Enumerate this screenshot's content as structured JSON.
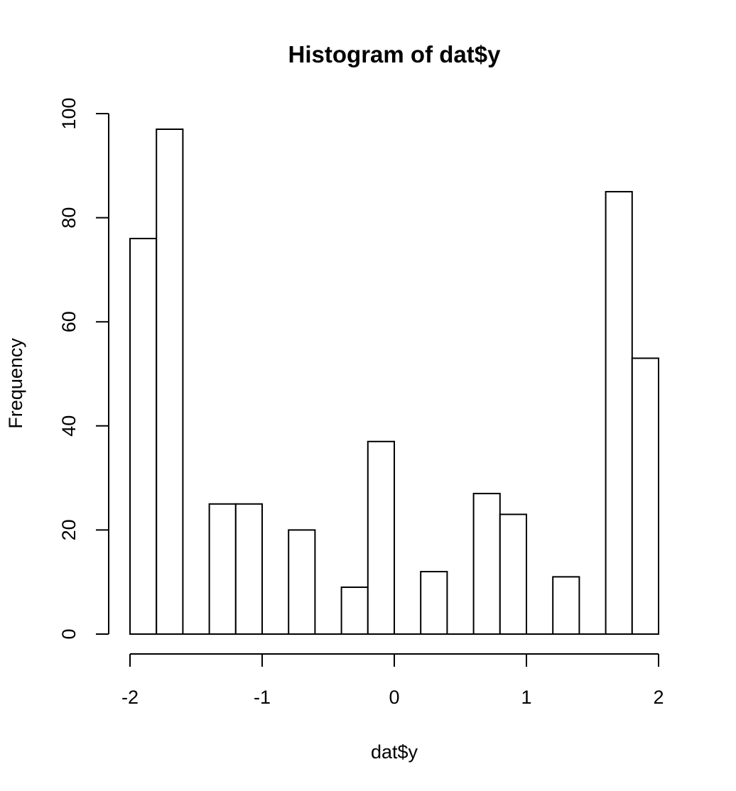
{
  "chart_data": {
    "type": "bar",
    "title": "Histogram of dat$y",
    "xlabel": "dat$y",
    "ylabel": "Frequency",
    "bin_edges": [
      -2.0,
      -1.8,
      -1.6,
      -1.4,
      -1.2,
      -1.0,
      -0.8,
      -0.6,
      -0.4,
      -0.2,
      0.0,
      0.2,
      0.4,
      0.6,
      0.8,
      1.0,
      1.2,
      1.4,
      1.6,
      1.8,
      2.0
    ],
    "values": [
      76,
      97,
      0,
      25,
      25,
      0,
      20,
      0,
      9,
      37,
      0,
      12,
      0,
      27,
      23,
      0,
      11,
      0,
      85,
      53
    ],
    "xlim": [
      -2,
      2
    ],
    "ylim": [
      0,
      100
    ],
    "x_ticks": [
      -2,
      -1,
      0,
      1,
      2
    ],
    "x_tick_labels": [
      "-2",
      "-1",
      "0",
      "1",
      "2"
    ],
    "y_ticks": [
      0,
      20,
      40,
      60,
      80,
      100
    ],
    "y_tick_labels": [
      "0",
      "20",
      "40",
      "60",
      "80",
      "100"
    ],
    "grid": false,
    "colors": {
      "bar_fill": "#ffffff",
      "bar_stroke": "#000000"
    }
  }
}
